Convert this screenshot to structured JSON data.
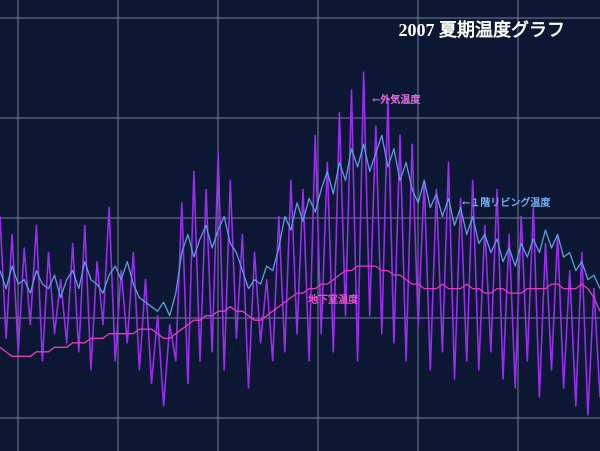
{
  "chart_data": {
    "type": "line",
    "title": "2007 夏期温度グラフ",
    "annotations": [
      "←外気温度",
      "←１階リビング温度",
      "地下室温度"
    ],
    "ylim": [
      0,
      100
    ],
    "grid": true,
    "series": [
      {
        "name": "外気温度",
        "color": "#9a2cf0",
        "values": [
          52,
          25,
          48,
          22,
          45,
          28,
          50,
          20,
          44,
          26,
          38,
          24,
          46,
          22,
          50,
          18,
          42,
          28,
          54,
          20,
          40,
          24,
          44,
          18,
          38,
          15,
          30,
          10,
          28,
          20,
          55,
          15,
          62,
          20,
          58,
          22,
          66,
          18,
          60,
          25,
          48,
          14,
          44,
          24,
          38,
          20,
          52,
          22,
          60,
          26,
          58,
          20,
          70,
          26,
          64,
          22,
          75,
          30,
          80,
          20,
          84,
          30,
          72,
          26,
          78,
          24,
          70,
          20,
          68,
          28,
          60,
          18,
          58,
          22,
          64,
          16,
          56,
          20,
          60,
          18,
          50,
          22,
          58,
          16,
          48,
          14,
          52,
          20,
          54,
          12,
          46,
          18,
          48,
          14,
          40,
          10,
          44,
          8,
          36,
          12
        ]
      },
      {
        "name": "１階リビング温度",
        "color": "#5a9fe0",
        "values": [
          40,
          36,
          41,
          37,
          38,
          35,
          40,
          37,
          36,
          39,
          34,
          38,
          40,
          36,
          42,
          38,
          37,
          35,
          39,
          41,
          38,
          42,
          37,
          34,
          33,
          32,
          31,
          33,
          30,
          35,
          44,
          48,
          43,
          47,
          50,
          45,
          49,
          52,
          46,
          44,
          40,
          36,
          38,
          37,
          41,
          40,
          45,
          52,
          49,
          55,
          51,
          56,
          53,
          58,
          62,
          57,
          64,
          60,
          67,
          63,
          68,
          62,
          66,
          70,
          63,
          67,
          60,
          64,
          58,
          55,
          60,
          54,
          57,
          52,
          56,
          50,
          54,
          48,
          52,
          46,
          48,
          44,
          47,
          42,
          45,
          41,
          46,
          43,
          47,
          44,
          49,
          45,
          48,
          43,
          44,
          40,
          42,
          38,
          39,
          36
        ]
      },
      {
        "name": "地下室温度",
        "color": "#e23cc0",
        "values": [
          23,
          22,
          21,
          21,
          21,
          21,
          22,
          22,
          22,
          23,
          23,
          23,
          24,
          24,
          24,
          25,
          25,
          25,
          26,
          26,
          26,
          26,
          26,
          27,
          27,
          27,
          26,
          25,
          25,
          26,
          27,
          28,
          29,
          29,
          30,
          30,
          31,
          31,
          32,
          31,
          31,
          30,
          29,
          29,
          30,
          31,
          32,
          33,
          34,
          35,
          35,
          36,
          36,
          37,
          37,
          38,
          39,
          40,
          40,
          41,
          41,
          41,
          41,
          40,
          40,
          39,
          39,
          38,
          37,
          37,
          36,
          36,
          36,
          37,
          36,
          36,
          36,
          37,
          36,
          36,
          35,
          35,
          36,
          36,
          35,
          35,
          35,
          36,
          36,
          36,
          36,
          37,
          37,
          36,
          36,
          36,
          37,
          36,
          34,
          31
        ]
      }
    ]
  }
}
